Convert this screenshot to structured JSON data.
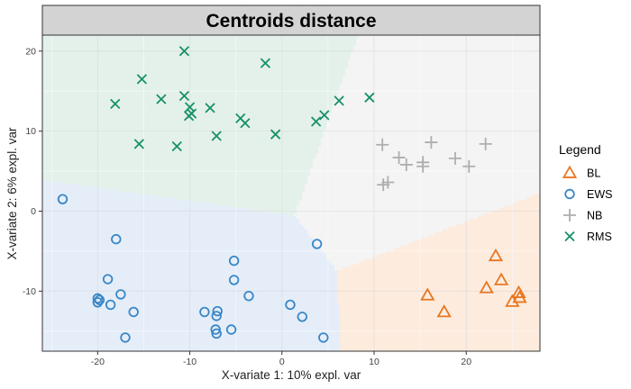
{
  "chart_data": {
    "type": "scatter",
    "title": "Centroids distance",
    "xlabel": "X-variate 1: 10% expl. var",
    "ylabel": "X-variate 2: 6% expl. var",
    "xlim": [
      -26,
      28
    ],
    "ylim": [
      -17.5,
      22
    ],
    "x_ticks": [
      -20,
      -10,
      0,
      10,
      20
    ],
    "y_ticks": [
      -10,
      0,
      10,
      20
    ],
    "grid": true,
    "legend_title": "Legend",
    "legend_position": "right",
    "series": [
      {
        "name": "BL",
        "marker": "triangle",
        "color": "#E87722",
        "region_color": "#FDEBDE",
        "points": [
          [
            15.8,
            -10.5
          ],
          [
            17.6,
            -12.6
          ],
          [
            22.2,
            -9.6
          ],
          [
            23.2,
            -5.6
          ],
          [
            23.8,
            -8.6
          ],
          [
            25.0,
            -11.3
          ],
          [
            25.7,
            -10.2
          ],
          [
            25.8,
            -10.8
          ]
        ]
      },
      {
        "name": "EWS",
        "marker": "circle",
        "color": "#3A87C8",
        "region_color": "#E5EEF8",
        "points": [
          [
            -23.8,
            1.5
          ],
          [
            -18.0,
            -3.5
          ],
          [
            -18.9,
            -8.5
          ],
          [
            -20.0,
            -10.9
          ],
          [
            -20.0,
            -11.4
          ],
          [
            -19.8,
            -11.1
          ],
          [
            -18.6,
            -11.7
          ],
          [
            -17.5,
            -10.4
          ],
          [
            -16.1,
            -12.6
          ],
          [
            -17.0,
            -15.8
          ],
          [
            -8.4,
            -12.6
          ],
          [
            -7.0,
            -12.5
          ],
          [
            -7.1,
            -13.1
          ],
          [
            -7.2,
            -14.8
          ],
          [
            -7.1,
            -15.3
          ],
          [
            -5.5,
            -14.8
          ],
          [
            -5.2,
            -6.2
          ],
          [
            -5.2,
            -8.6
          ],
          [
            -3.6,
            -10.6
          ],
          [
            0.9,
            -11.7
          ],
          [
            2.2,
            -13.2
          ],
          [
            3.8,
            -4.1
          ],
          [
            4.5,
            -15.8
          ]
        ]
      },
      {
        "name": "NB",
        "marker": "plus",
        "color": "#AEAEAE",
        "region_color": "#F4F4F4",
        "points": [
          [
            10.9,
            8.3
          ],
          [
            12.7,
            6.7
          ],
          [
            13.5,
            5.8
          ],
          [
            11.0,
            3.3
          ],
          [
            11.5,
            3.6
          ],
          [
            15.3,
            6.1
          ],
          [
            15.3,
            5.6
          ],
          [
            16.2,
            8.6
          ],
          [
            18.8,
            6.6
          ],
          [
            20.3,
            5.6
          ],
          [
            22.1,
            8.4
          ]
        ]
      },
      {
        "name": "RMS",
        "marker": "x",
        "color": "#179068",
        "region_color": "#E4F1EB",
        "points": [
          [
            -10.6,
            20.0
          ],
          [
            -1.8,
            18.5
          ],
          [
            -15.2,
            16.5
          ],
          [
            -18.1,
            13.4
          ],
          [
            -13.1,
            14.0
          ],
          [
            -10.6,
            14.4
          ],
          [
            -10.0,
            13.0
          ],
          [
            -9.8,
            12.2
          ],
          [
            -10.1,
            11.9
          ],
          [
            -7.8,
            12.9
          ],
          [
            -4.5,
            11.6
          ],
          [
            -4.0,
            11.0
          ],
          [
            -7.1,
            9.4
          ],
          [
            -11.4,
            8.1
          ],
          [
            -15.5,
            8.4
          ],
          [
            -0.7,
            9.6
          ],
          [
            3.7,
            11.2
          ],
          [
            4.6,
            12.0
          ],
          [
            6.2,
            13.8
          ],
          [
            9.5,
            14.2
          ]
        ]
      }
    ]
  }
}
